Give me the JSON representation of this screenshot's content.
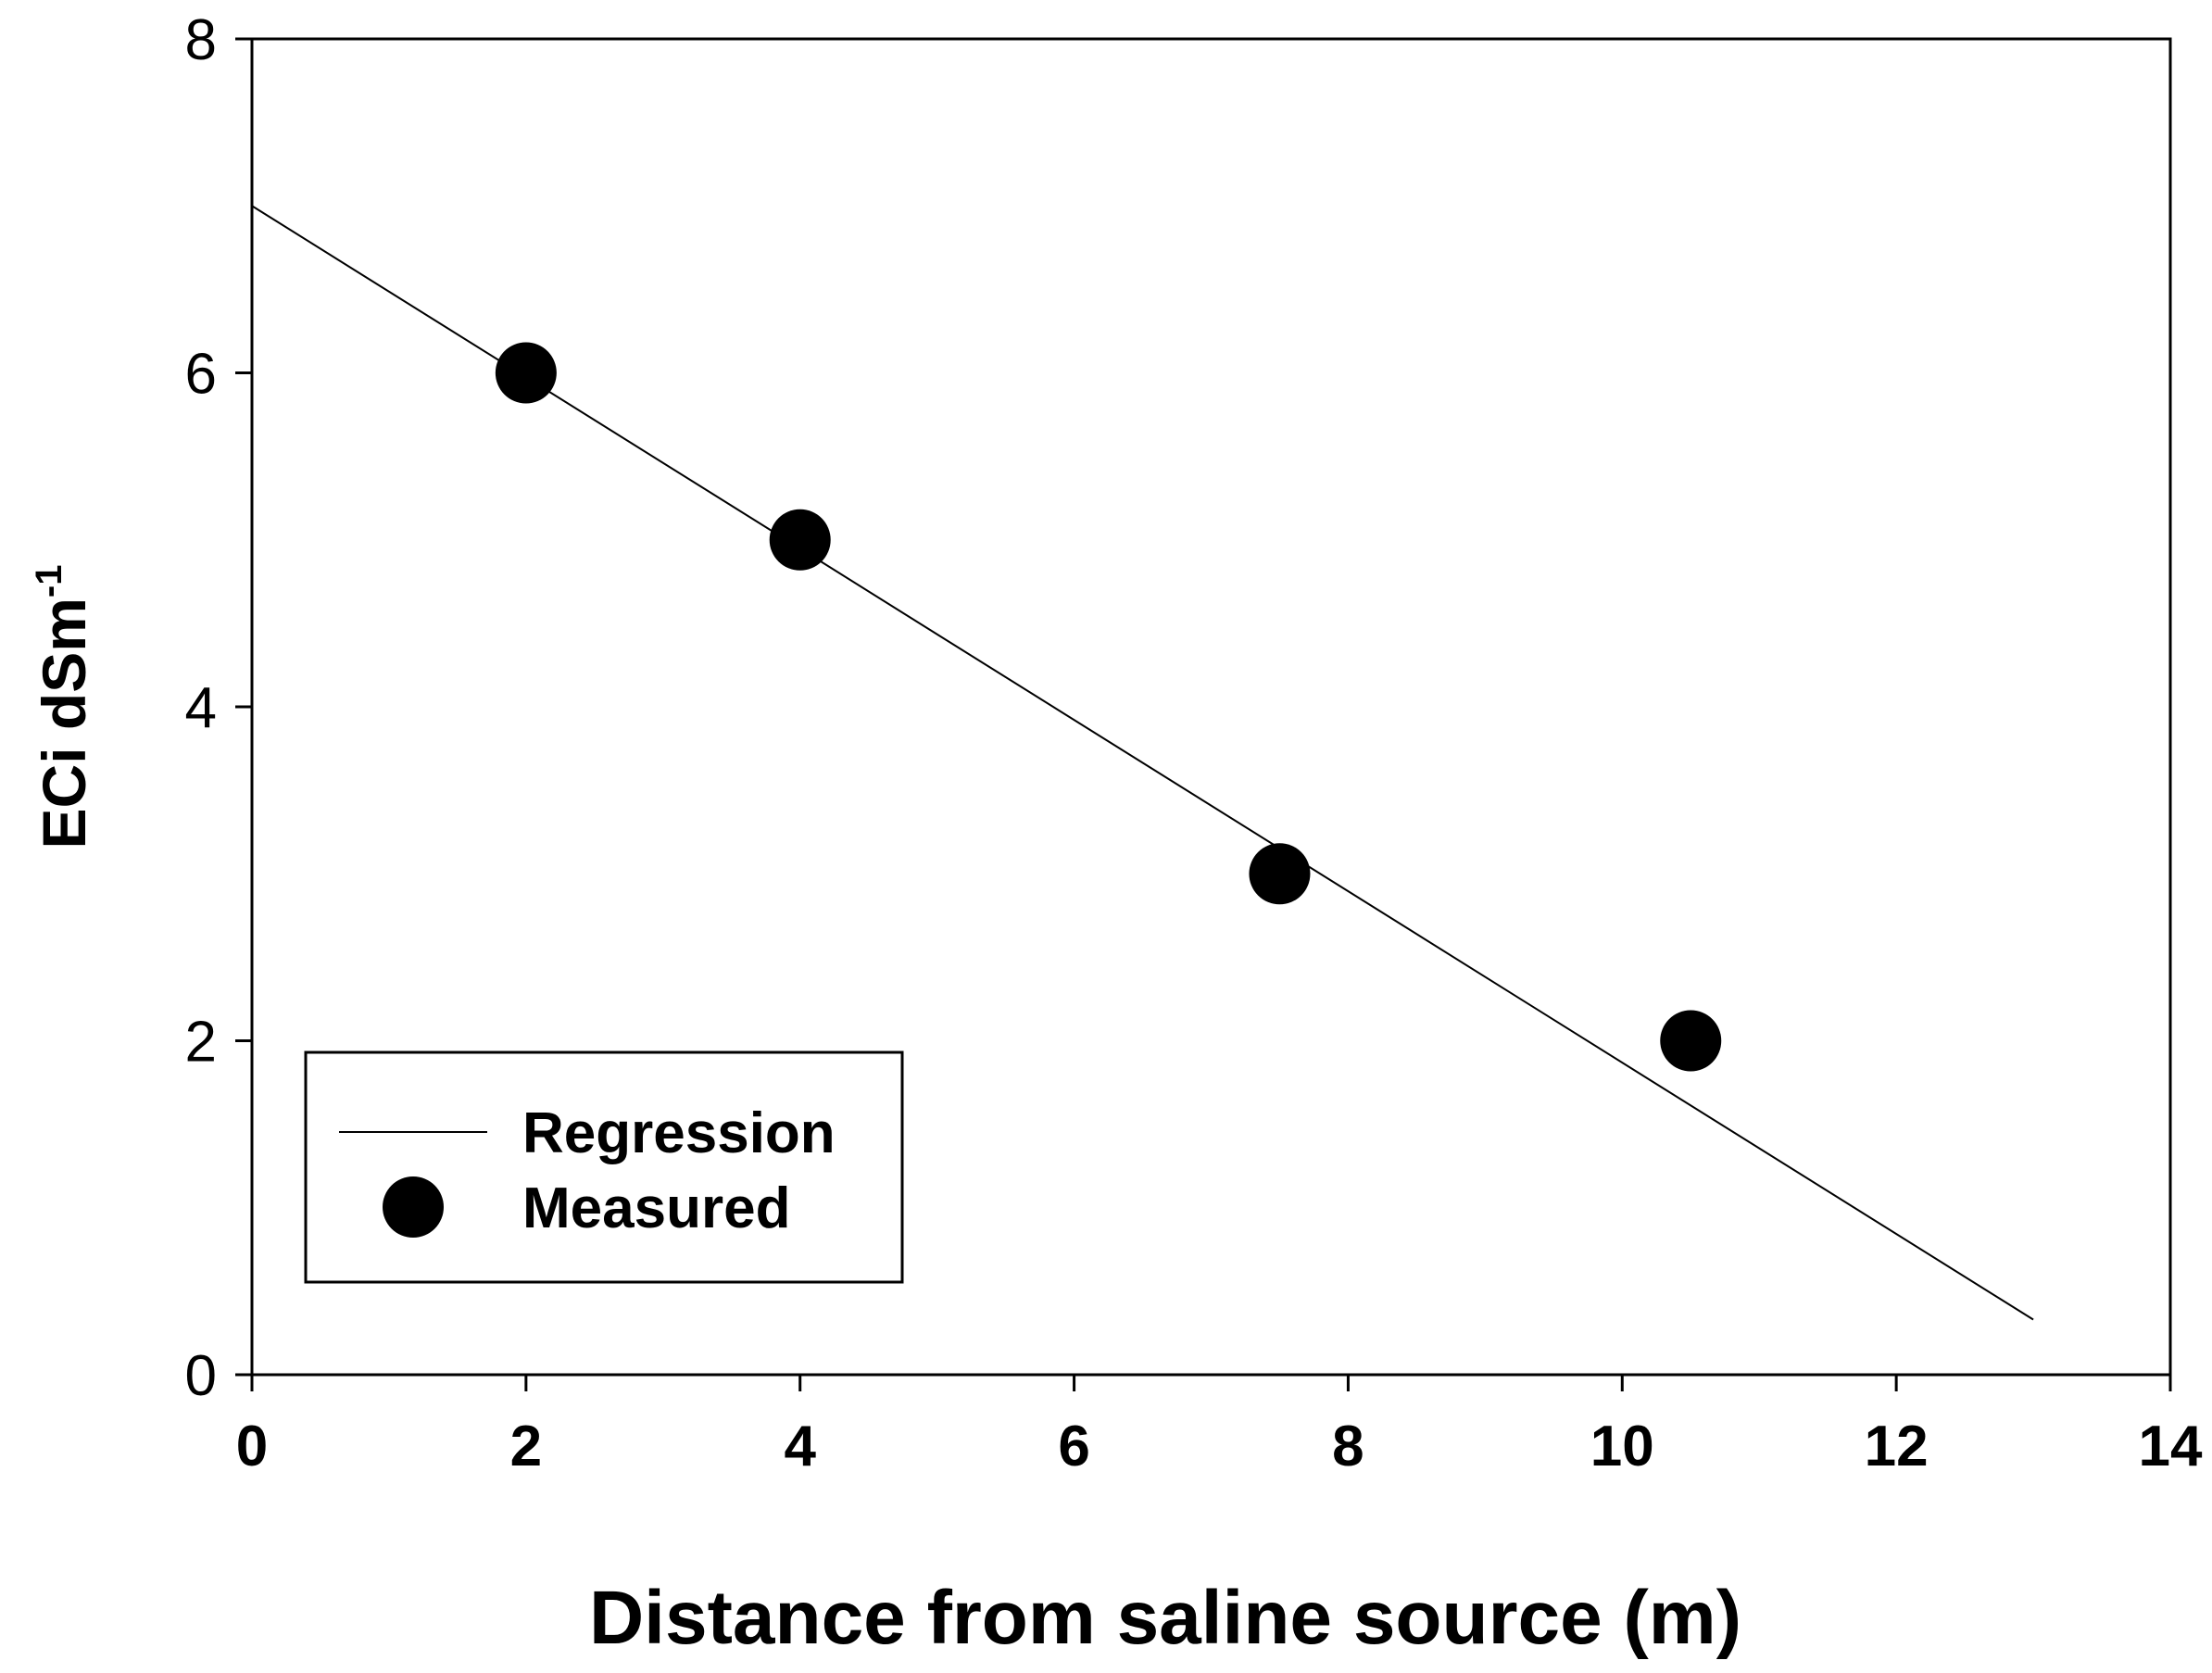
{
  "chart_data": {
    "type": "scatter",
    "title": "",
    "xlabel": "Distance from saline source (m)",
    "ylabel": {
      "base": "ECi dSm",
      "superscript": "-1"
    },
    "xlim": [
      0,
      14
    ],
    "ylim": [
      0,
      8
    ],
    "xticks": [
      "0",
      "2",
      "4",
      "6",
      "8",
      "10",
      "12",
      "14"
    ],
    "yticks": [
      "0",
      "2",
      "4",
      "6",
      "8"
    ],
    "grid": false,
    "legend_position": "bottom-left",
    "series": [
      {
        "name": "Regression",
        "kind": "line",
        "color": "#000000",
        "x": [
          0,
          13
        ],
        "y": [
          7.0,
          0.33
        ]
      },
      {
        "name": "Measured",
        "kind": "scatter",
        "color": "#000000",
        "marker": "filled-circle",
        "x": [
          2,
          4,
          7.5,
          10.5
        ],
        "y": [
          6,
          5,
          3,
          2
        ]
      }
    ]
  }
}
